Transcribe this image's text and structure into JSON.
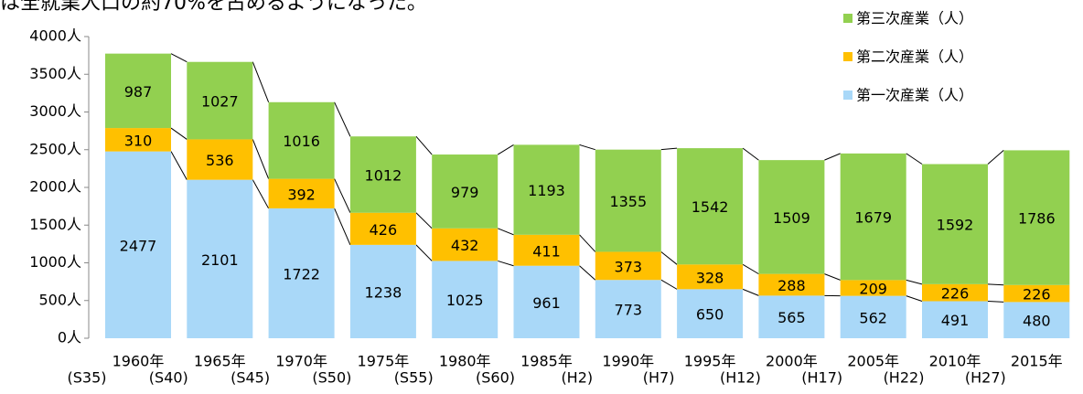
{
  "caption": "は全就業人口の約70%を占めるようになった。",
  "chart_data": {
    "type": "stacked_bar",
    "categories": [
      "1960年",
      "1965年",
      "1970年",
      "1975年",
      "1980年",
      "1985年",
      "1990年",
      "1995年",
      "2000年",
      "2005年",
      "2010年",
      "2015年"
    ],
    "era_labels": [
      "(S35)",
      "(S40)",
      "(S45)",
      "(S50)",
      "(S55)",
      "(S60)",
      "(H2)",
      "(H7)",
      "(H12)",
      "(H17)",
      "(H22)",
      "(H27)"
    ],
    "series": [
      {
        "name": "第一次産業（人）",
        "color": "#a9d8f8",
        "values": [
          2477,
          2101,
          1722,
          1238,
          1025,
          961,
          773,
          650,
          565,
          562,
          491,
          480
        ]
      },
      {
        "name": "第二次産業（人）",
        "color": "#ffc000",
        "values": [
          310,
          536,
          392,
          426,
          432,
          411,
          373,
          328,
          288,
          209,
          226,
          226
        ]
      },
      {
        "name": "第三次産業（人）",
        "color": "#92d050",
        "values": [
          987,
          1027,
          1016,
          1012,
          979,
          1193,
          1355,
          1542,
          1509,
          1679,
          1592,
          1786
        ]
      }
    ],
    "ylim": [
      0,
      4000
    ],
    "yticks": [
      {
        "value": 0,
        "label": "0人"
      },
      {
        "value": 500,
        "label": "500人"
      },
      {
        "value": 1000,
        "label": "1000人"
      },
      {
        "value": 1500,
        "label": "1500人"
      },
      {
        "value": 2000,
        "label": "2000人"
      },
      {
        "value": 2500,
        "label": "2500人"
      },
      {
        "value": 3000,
        "label": "3000人"
      },
      {
        "value": 3500,
        "label": "3500人"
      },
      {
        "value": 4000,
        "label": "4000人"
      }
    ],
    "legend": "top-right",
    "grid": false
  }
}
